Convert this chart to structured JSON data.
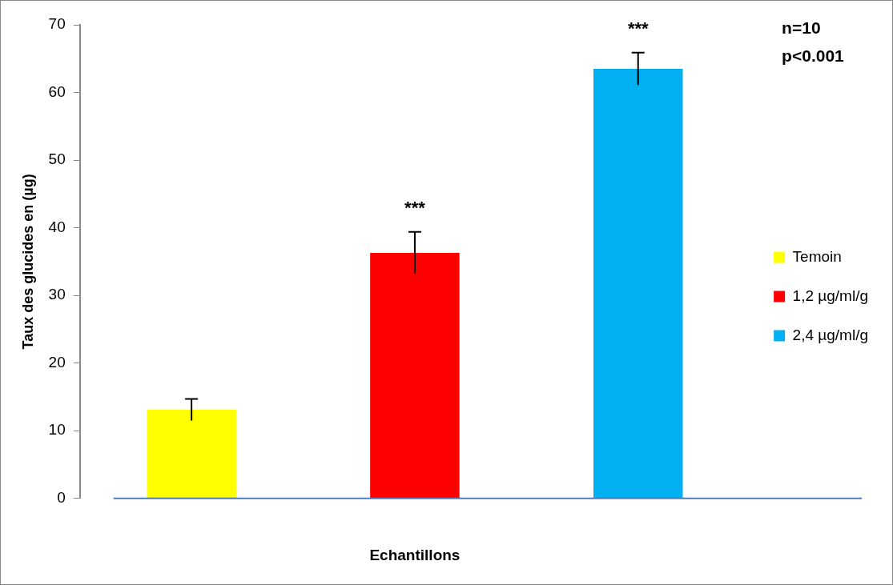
{
  "chart_data": {
    "type": "bar",
    "xlabel": "Echantillons",
    "ylabel": "Taux des glucides en (µg)",
    "categories": [
      null
    ],
    "series": [
      {
        "name": "Temoin",
        "color": "#ffff00",
        "values": [
          13.1
        ],
        "errors": [
          1.6
        ],
        "value_labels": [
          null
        ]
      },
      {
        "name": "1,2 µg/ml/g",
        "color": "#ff0000",
        "values": [
          36.3
        ],
        "errors": [
          3.1
        ],
        "value_labels": [
          "***"
        ]
      },
      {
        "name": "2,4 µg/ml/g",
        "color": "#00b0f0",
        "values": [
          63.5
        ],
        "errors": [
          2.4
        ],
        "value_labels": [
          "***"
        ]
      }
    ],
    "ylim": [
      0,
      70
    ],
    "yticks": [
      0,
      10,
      20,
      30,
      40,
      50,
      60,
      70
    ],
    "grid": false,
    "legend": "right",
    "annotations": [
      "n=10",
      "p<0.001"
    ]
  }
}
